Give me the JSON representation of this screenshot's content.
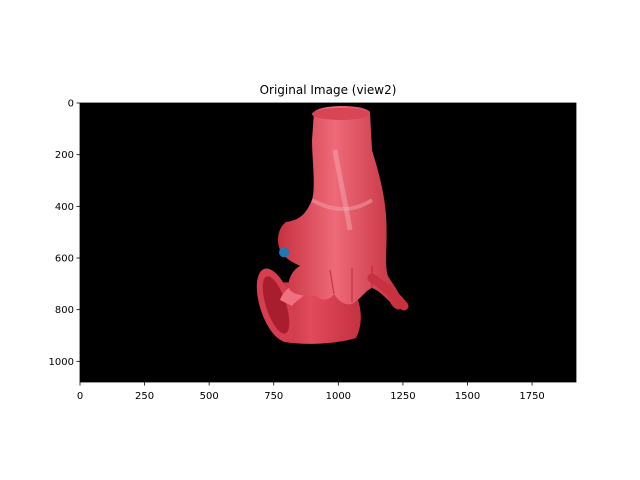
{
  "chart_data": {
    "type": "scatter",
    "title": "Original Image (view2)",
    "xlabel": "",
    "ylabel": "",
    "image_width": 1920,
    "image_height": 1080,
    "xlim": [
      0,
      1920
    ],
    "ylim": [
      1080,
      0
    ],
    "x_ticks": [
      0,
      250,
      500,
      750,
      1000,
      1250,
      1500,
      1750
    ],
    "y_ticks": [
      0,
      200,
      400,
      600,
      800,
      1000
    ],
    "grid": false,
    "background_color": "#000000",
    "image_content": "red 3D hand grasping a red mug",
    "series": [
      {
        "x": [
          790
        ],
        "y": [
          578
        ],
        "color": "#1f77b4"
      }
    ]
  }
}
